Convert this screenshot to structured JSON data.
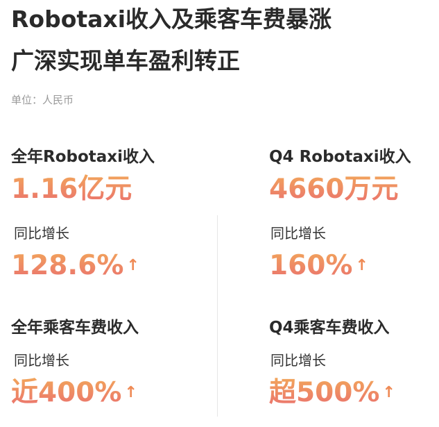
{
  "title": {
    "line1": "Robotaxi收入及乘客车费暴涨",
    "line2": "广深实现单车盈利转正"
  },
  "unit": "单位：人民币",
  "cards": [
    {
      "label": "全年Robotaxi收入",
      "value": "1.16亿元",
      "growth_label": "同比增长",
      "growth": "128.6%"
    },
    {
      "label": "Q4 Robotaxi收入",
      "value": "4660万元",
      "growth_label": "同比增长",
      "growth": "160%"
    },
    {
      "label": "全年乘客车费收入",
      "growth_label": "同比增长",
      "growth": "近400%"
    },
    {
      "label": "Q4乘客车费收入",
      "growth_label": "同比增长",
      "growth": "超500%"
    }
  ],
  "arrow_icon": "up-arrow-icon",
  "colors": {
    "gradient_top": "#f2a65a",
    "gradient_bottom": "#ea6f6f"
  }
}
